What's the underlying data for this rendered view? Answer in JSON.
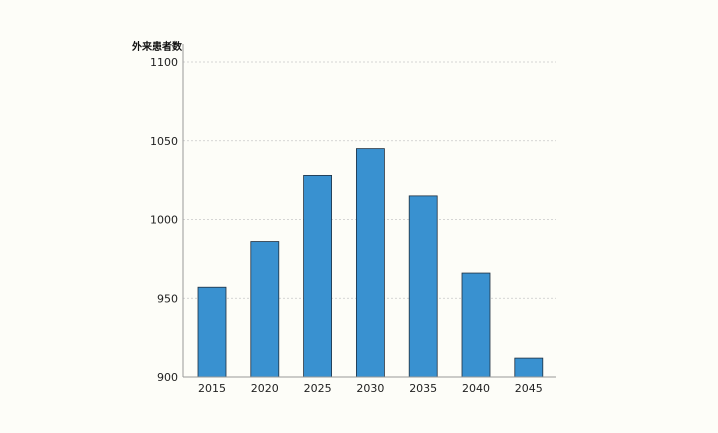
{
  "chart_data": {
    "type": "bar",
    "title": "",
    "xlabel": "",
    "ylabel": "外来患者数",
    "categories": [
      "2015",
      "2020",
      "2025",
      "2030",
      "2035",
      "2040",
      "2045"
    ],
    "values": [
      957,
      986,
      1028,
      1045,
      1015,
      966,
      912
    ],
    "ylim": [
      900,
      1100
    ],
    "yticks": [
      900,
      950,
      1000,
      1050,
      1100
    ],
    "grid": true,
    "legend": "none",
    "colors": {
      "bar": "#3991d0",
      "bar_stroke": "#1f2f3f",
      "grid": "#c8c8c8",
      "axis": "#999999",
      "background": "#fdfdf8"
    }
  }
}
